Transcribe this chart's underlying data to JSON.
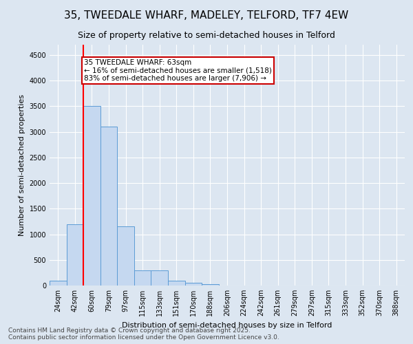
{
  "title_line1": "35, TWEEDALE WHARF, MADELEY, TELFORD, TF7 4EW",
  "title_line2": "Size of property relative to semi-detached houses in Telford",
  "xlabel": "Distribution of semi-detached houses by size in Telford",
  "ylabel": "Number of semi-detached properties",
  "bins": [
    "24sqm",
    "42sqm",
    "60sqm",
    "79sqm",
    "97sqm",
    "115sqm",
    "133sqm",
    "151sqm",
    "170sqm",
    "188sqm",
    "206sqm",
    "224sqm",
    "242sqm",
    "261sqm",
    "279sqm",
    "297sqm",
    "315sqm",
    "333sqm",
    "352sqm",
    "370sqm",
    "388sqm"
  ],
  "values": [
    100,
    1200,
    3500,
    3100,
    1150,
    300,
    290,
    90,
    50,
    25,
    5,
    0,
    0,
    0,
    0,
    0,
    0,
    0,
    0,
    0,
    0
  ],
  "bar_color": "#c5d8f0",
  "bar_edge_color": "#5b9bd5",
  "red_line_x": 1.5,
  "annotation_text": "35 TWEEDALE WHARF: 63sqm\n← 16% of semi-detached houses are smaller (1,518)\n83% of semi-detached houses are larger (7,906) →",
  "annotation_box_color": "#ffffff",
  "annotation_box_edge_color": "#cc0000",
  "ylim": [
    0,
    4700
  ],
  "yticks": [
    0,
    500,
    1000,
    1500,
    2000,
    2500,
    3000,
    3500,
    4000,
    4500
  ],
  "footnote": "Contains HM Land Registry data © Crown copyright and database right 2025.\nContains public sector information licensed under the Open Government Licence v3.0.",
  "background_color": "#dce6f1",
  "plot_bg_color": "#dce6f1",
  "grid_color": "#ffffff",
  "title_fontsize": 11,
  "subtitle_fontsize": 9,
  "axis_label_fontsize": 8,
  "tick_fontsize": 7,
  "footnote_fontsize": 6.5,
  "annotation_fontsize": 7.5
}
